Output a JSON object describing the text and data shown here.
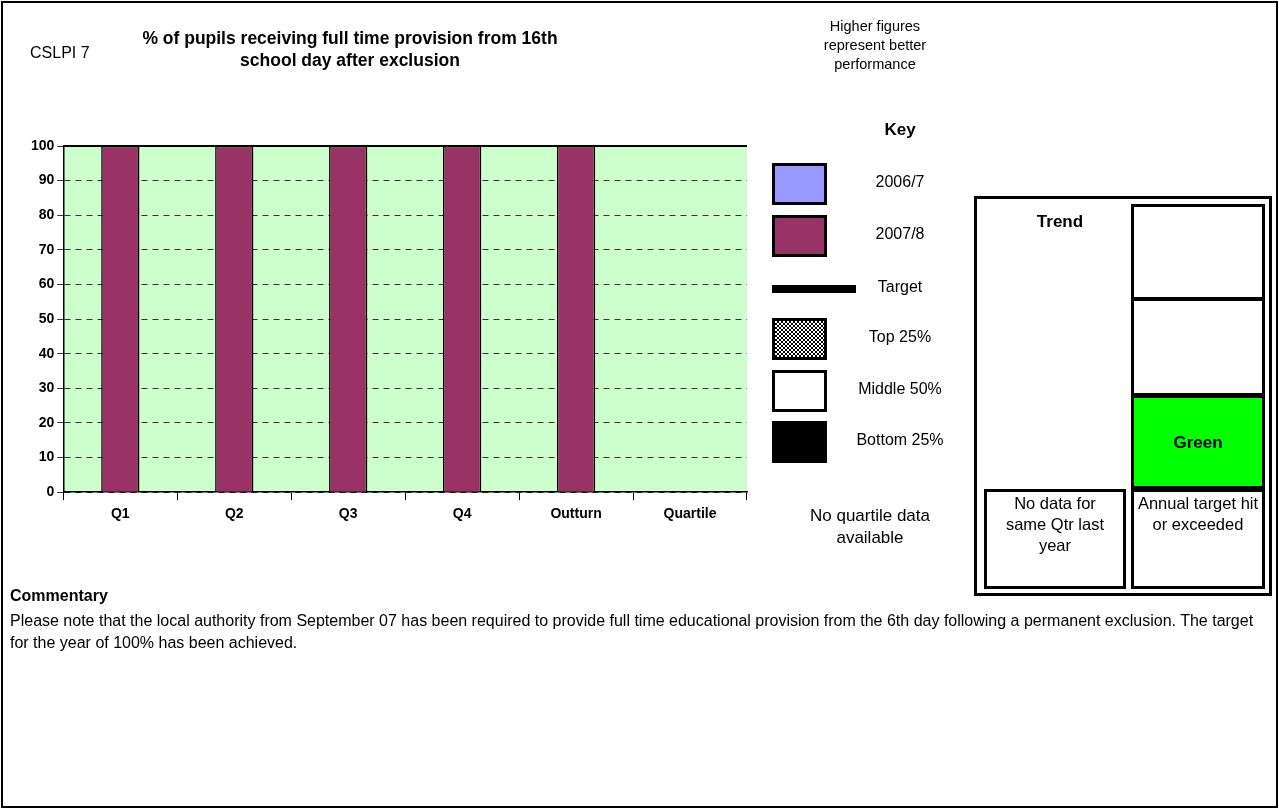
{
  "chart_data": {
    "type": "bar",
    "title": "% of pupils receiving full time provision from 16th school day after exclusion",
    "subtitle": "CSLPI 7",
    "categories": [
      "Q1",
      "Q2",
      "Q3",
      "Q4",
      "Outturn",
      "Quartile"
    ],
    "series": [
      {
        "name": "2007/8",
        "color": "#993366",
        "values": [
          100,
          100,
          100,
          100,
          100,
          null
        ]
      }
    ],
    "ylim": [
      0,
      100
    ],
    "yticks": [
      0,
      10,
      20,
      30,
      40,
      50,
      60,
      70,
      80,
      90,
      100
    ],
    "grid": "y",
    "legend": "right",
    "legend_title": "Key",
    "annotations": [
      "Higher figures represent better performance",
      "No quartile data available",
      "Trend",
      "Green",
      "No data for same Qtr last year",
      "Annual target hit or exceeded",
      "Commentary",
      "Please note that the local authority from September 07 has been required to provide full time educational provision from the 6th day following a permanent exclusion.  The target for the year of 100% has been achieved.",
      "2006/7",
      "Target",
      "Top 25%",
      "Middle 50%",
      "Bottom 25%"
    ]
  }
}
